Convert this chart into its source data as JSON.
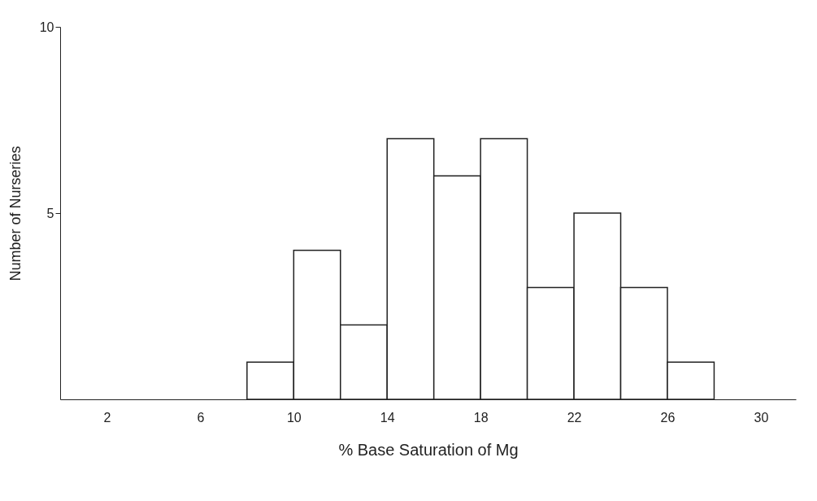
{
  "chart_data": {
    "type": "histogram",
    "xlabel": "% Base Saturation of Mg",
    "ylabel": "Number of Nurseries",
    "bins": [
      8,
      10,
      12,
      14,
      16,
      18,
      20,
      22,
      24,
      26,
      28
    ],
    "values": [
      1,
      4,
      2,
      7,
      6,
      7,
      3,
      5,
      3,
      1
    ],
    "color": "#ffffff",
    "xlim": [
      0,
      31.5
    ],
    "xticks": [
      2,
      6,
      10,
      14,
      18,
      22,
      26,
      30
    ],
    "ylim": [
      0,
      10
    ],
    "yticks": [
      5,
      10
    ],
    "grid": false
  }
}
